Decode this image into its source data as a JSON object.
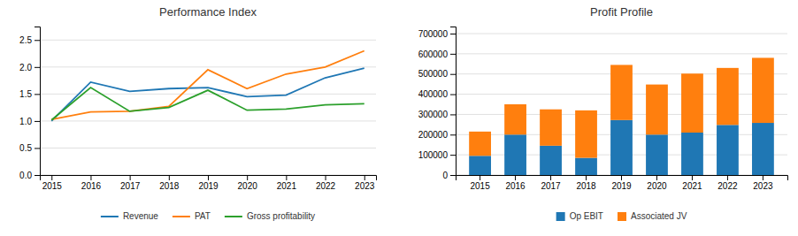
{
  "chart_data": [
    {
      "type": "line",
      "title": "Performance Index",
      "x": [
        2015,
        2016,
        2017,
        2018,
        2019,
        2020,
        2021,
        2022,
        2023
      ],
      "series": [
        {
          "name": "Revenue",
          "values": [
            1.0,
            1.72,
            1.55,
            1.6,
            1.62,
            1.45,
            1.48,
            1.8,
            1.98
          ]
        },
        {
          "name": "PAT",
          "values": [
            1.03,
            1.17,
            1.18,
            1.27,
            1.95,
            1.6,
            1.87,
            2.0,
            2.3
          ]
        },
        {
          "name": "Gross profitability",
          "values": [
            1.02,
            1.62,
            1.18,
            1.25,
            1.57,
            1.2,
            1.22,
            1.3,
            1.32
          ]
        }
      ],
      "xlim": [
        2014.7,
        2023.3
      ],
      "xticks": [
        2015,
        2016,
        2017,
        2018,
        2019,
        2020,
        2021,
        2022,
        2023
      ],
      "ylim": [
        0.0,
        2.75
      ],
      "yticks": [
        {
          "value": 0.0,
          "label": "0.0"
        },
        0.5,
        {
          "value": 1.0,
          "label": "1.0"
        },
        1.5,
        {
          "value": 2.0,
          "label": "2.0"
        },
        2.5
      ],
      "grid": true,
      "legend": "bottom"
    },
    {
      "type": "bar",
      "title": "Profit Profile",
      "stacked": true,
      "categories": [
        "2015",
        "2016",
        "2017",
        "2018",
        "2019",
        "2020",
        "2021",
        "2022",
        "2023"
      ],
      "series": [
        {
          "name": "Op EBIT",
          "values": [
            95000,
            200000,
            145000,
            85000,
            272000,
            200000,
            210000,
            248000,
            258000
          ]
        },
        {
          "name": "Associated JV",
          "values": [
            120000,
            150000,
            180000,
            235000,
            273000,
            248000,
            292000,
            282000,
            322000
          ]
        }
      ],
      "ylim": [
        0,
        735000
      ],
      "yticks": [
        0,
        100000,
        200000,
        300000,
        400000,
        500000,
        600000,
        700000
      ],
      "grid": true,
      "legend": "bottom"
    }
  ]
}
